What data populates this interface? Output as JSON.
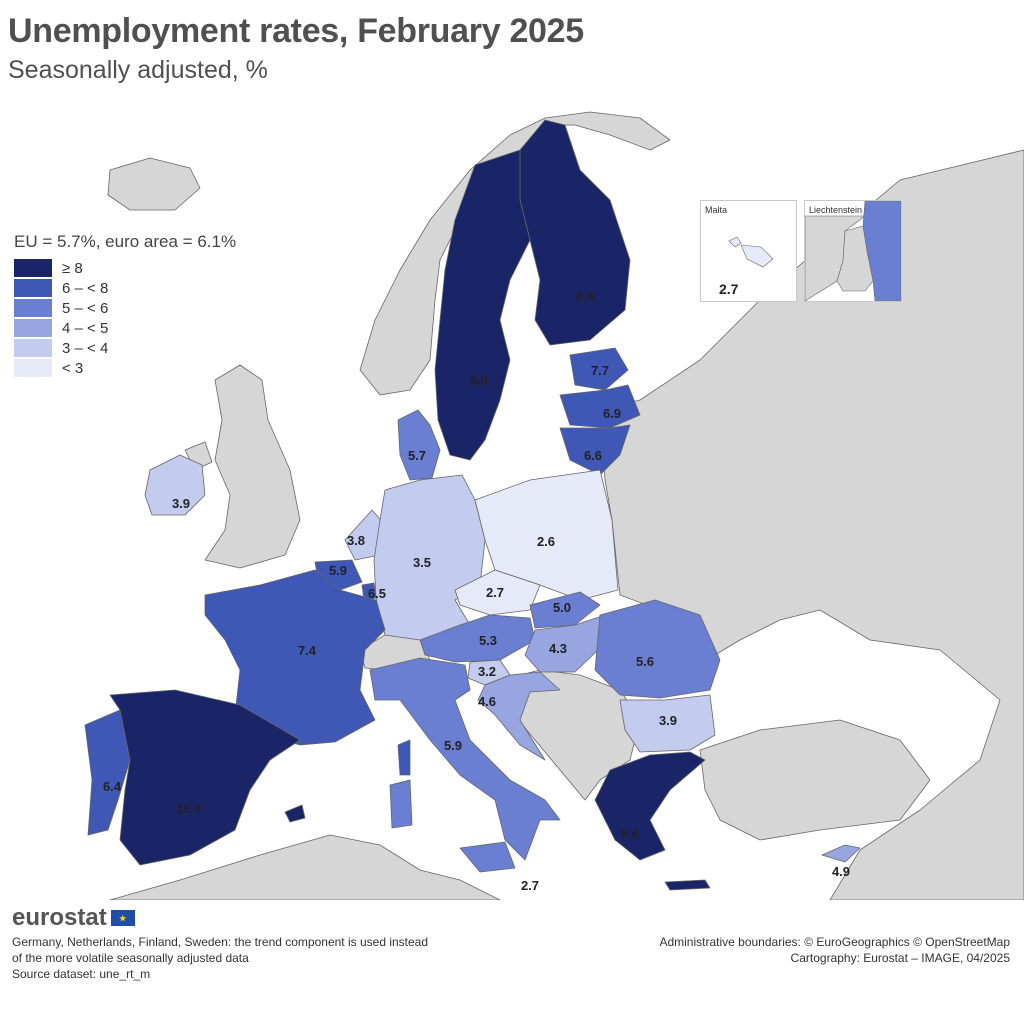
{
  "title": "Unemployment rates, February 2025",
  "subtitle": "Seasonally adjusted, %",
  "legend": {
    "heading": "EU = 5.7%, euro area = 6.1%",
    "classes": [
      {
        "label": "≥ 8",
        "color": "#1a2567"
      },
      {
        "label": "6 – < 8",
        "color": "#3f57b5"
      },
      {
        "label": "5 – < 6",
        "color": "#6a7fd2"
      },
      {
        "label": "4 – < 5",
        "color": "#97a5e0"
      },
      {
        "label": "3 – < 4",
        "color": "#c3cbef"
      },
      {
        "label": "< 3",
        "color": "#e6e9f8"
      }
    ]
  },
  "colors": {
    "non_eu_land": "#d6d6d6",
    "sea": "#ffffff",
    "border": "#555555"
  },
  "insets": {
    "malta": {
      "title": "Malta",
      "value": "2.7"
    },
    "liechtenstein": {
      "title": "Liechtenstein"
    }
  },
  "countries": [
    {
      "name": "Spain",
      "value": "10.4"
    },
    {
      "name": "Sweden",
      "value": "9.0"
    },
    {
      "name": "Finland",
      "value": "8.8"
    },
    {
      "name": "Greece",
      "value": "8.6"
    },
    {
      "name": "Estonia",
      "value": "7.7"
    },
    {
      "name": "France",
      "value": "7.4"
    },
    {
      "name": "Latvia",
      "value": "6.9"
    },
    {
      "name": "Lithuania",
      "value": "6.6"
    },
    {
      "name": "Luxembourg",
      "value": "6.5"
    },
    {
      "name": "Portugal",
      "value": "6.4"
    },
    {
      "name": "Belgium",
      "value": "5.9"
    },
    {
      "name": "Italy",
      "value": "5.9"
    },
    {
      "name": "Denmark",
      "value": "5.7"
    },
    {
      "name": "Romania",
      "value": "5.6"
    },
    {
      "name": "Austria",
      "value": "5.3"
    },
    {
      "name": "Slovakia",
      "value": "5.0"
    },
    {
      "name": "Cyprus",
      "value": "4.9"
    },
    {
      "name": "Croatia",
      "value": "4.6"
    },
    {
      "name": "Hungary",
      "value": "4.3"
    },
    {
      "name": "Ireland",
      "value": "3.9"
    },
    {
      "name": "Bulgaria",
      "value": "3.9"
    },
    {
      "name": "Netherlands",
      "value": "3.8"
    },
    {
      "name": "Germany",
      "value": "3.5"
    },
    {
      "name": "Slovenia",
      "value": "3.2"
    },
    {
      "name": "Czechia",
      "value": "2.7"
    },
    {
      "name": "Sicily-Malta label",
      "value": "2.7"
    },
    {
      "name": "Poland",
      "value": "2.6"
    }
  ],
  "footer": {
    "logo": "eurostat",
    "note_line1": "Germany, Netherlands, Finland, Sweden: the trend component is used instead",
    "note_line2": "of the more volatile seasonally adjusted data",
    "source": "Source dataset: une_rt_m",
    "credit_line1": "Administrative boundaries: © EuroGeographics © OpenStreetMap",
    "credit_line2": "Cartography: Eurostat – IMAGE, 04/2025"
  }
}
